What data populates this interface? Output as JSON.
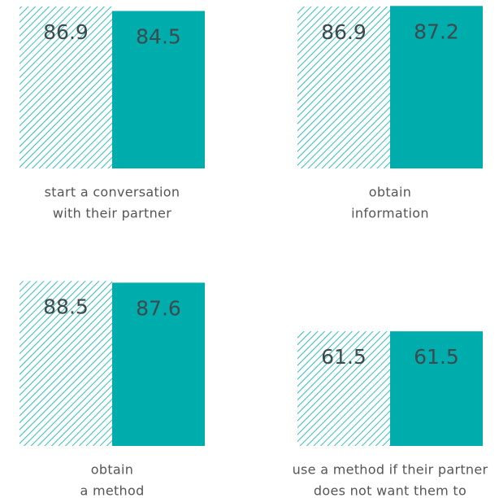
{
  "chart_data": [
    {
      "type": "bar",
      "label": [
        "start a conversation",
        "with their partner"
      ],
      "values": [
        86.9,
        84.5
      ],
      "styles": [
        "hatched",
        "solid"
      ],
      "color": "#00adad"
    },
    {
      "type": "bar",
      "label": [
        "obtain",
        "information"
      ],
      "values": [
        86.9,
        87.2
      ],
      "styles": [
        "hatched",
        "solid"
      ],
      "color": "#00adad"
    },
    {
      "type": "bar",
      "label": [
        "obtain",
        "a method"
      ],
      "values": [
        88.5,
        87.6
      ],
      "styles": [
        "hatched",
        "solid"
      ],
      "color": "#00adad"
    },
    {
      "type": "bar",
      "label": [
        "use a method if their partner",
        "does not want them to"
      ],
      "values": [
        61.5,
        61.5
      ],
      "styles": [
        "hatched",
        "solid"
      ],
      "color": "#00adad"
    }
  ]
}
